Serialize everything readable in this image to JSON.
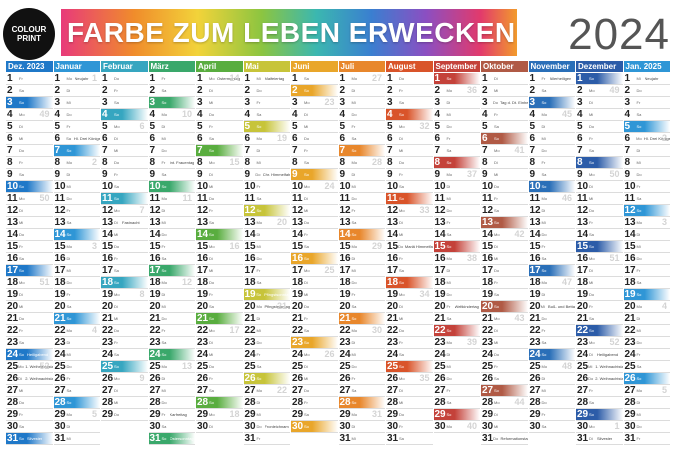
{
  "logo": {
    "line1": "COLOUR",
    "line2": "PRINT"
  },
  "header": {
    "title": "FARBE ZUM LEBEN ERWECKEN",
    "year": "2024"
  },
  "months": [
    {
      "name": "Dez. 2023",
      "days": 31,
      "start": 4,
      "color": "#1f78c8",
      "events": {
        "24": "Heiligabend",
        "25": "1. Weihnachtstag",
        "26": "2. Weihnachtstag",
        "31": "Silvester"
      },
      "weeks": {
        "4": "49",
        "11": "50",
        "18": "51",
        "25": "52"
      }
    },
    {
      "name": "Januar",
      "days": 31,
      "start": 0,
      "color": "#2f96d6",
      "events": {
        "1": "Neujahr",
        "6": "Hl. Drei Könige"
      },
      "weeks": {
        "1": "1",
        "8": "2",
        "15": "3",
        "22": "4",
        "29": "5"
      }
    },
    {
      "name": "Februar",
      "days": 29,
      "start": 3,
      "color": "#36a6c0",
      "events": {
        "13": "Fastnacht"
      },
      "weeks": {
        "5": "6",
        "12": "7",
        "19": "8",
        "26": "9"
      }
    },
    {
      "name": "März",
      "days": 31,
      "start": 4,
      "color": "#3aa86b",
      "events": {
        "8": "Int. Frauentag",
        "29": "Karfreitag",
        "31": "Ostersonntag"
      },
      "weeks": {
        "4": "10",
        "11": "11",
        "18": "12",
        "25": "13"
      }
    },
    {
      "name": "April",
      "days": 30,
      "start": 0,
      "color": "#59ad3f",
      "events": {
        "1": "Ostermontag"
      },
      "weeks": {
        "1": "14",
        "8": "15",
        "15": "16",
        "22": "17",
        "29": "18"
      }
    },
    {
      "name": "Mai",
      "days": 31,
      "start": 2,
      "color": "#c7c43a",
      "events": {
        "1": "Maifeiertag",
        "9": "Chr. Himmelfahrt",
        "19": "Pfingstsonntag",
        "20": "Pfingstmontag",
        "30": "Fronleichnam"
      },
      "weeks": {
        "6": "19",
        "13": "20",
        "20": "21",
        "27": "22"
      }
    },
    {
      "name": "Juni",
      "days": 30,
      "start": 5,
      "color": "#e9a62a",
      "events": {},
      "weeks": {
        "3": "23",
        "10": "24",
        "17": "25",
        "24": "26"
      }
    },
    {
      "name": "Juli",
      "days": 31,
      "start": 0,
      "color": "#e8872c",
      "events": {},
      "weeks": {
        "1": "27",
        "8": "28",
        "15": "29",
        "22": "30",
        "29": "31"
      }
    },
    {
      "name": "August",
      "days": 31,
      "start": 3,
      "color": "#d9542a",
      "events": {
        "15": "Mariä Himmelfahrt"
      },
      "weeks": {
        "5": "32",
        "12": "33",
        "19": "34",
        "26": "35"
      }
    },
    {
      "name": "September",
      "days": 30,
      "start": 6,
      "color": "#c4423a",
      "events": {
        "20": "Weltkindertag"
      },
      "weeks": {
        "2": "36",
        "9": "37",
        "16": "38",
        "23": "39",
        "30": "40"
      }
    },
    {
      "name": "Oktober",
      "days": 31,
      "start": 1,
      "color": "#b05a45",
      "events": {
        "3": "Tag d. Dt. Einheit",
        "31": "Reformationstag"
      },
      "weeks": {
        "7": "41",
        "14": "42",
        "21": "43",
        "28": "44"
      }
    },
    {
      "name": "November",
      "days": 30,
      "start": 4,
      "color": "#2a6fb8",
      "events": {
        "1": "Allerheiligen",
        "20": "Buß- und Bettag"
      },
      "weeks": {
        "4": "45",
        "11": "46",
        "18": "47",
        "25": "48"
      }
    },
    {
      "name": "Dezember",
      "days": 31,
      "start": 6,
      "color": "#2c5ca8",
      "events": {
        "24": "Heiligabend",
        "25": "1. Weihnachtstag",
        "26": "2. Weihnachtstag",
        "31": "Silvester"
      },
      "weeks": {
        "2": "49",
        "9": "50",
        "16": "51",
        "23": "52",
        "30": "1"
      }
    },
    {
      "name": "Jan. 2025",
      "days": 31,
      "start": 2,
      "color": "#2f96d6",
      "events": {
        "1": "Neujahr",
        "6": "Hl. Drei Könige"
      },
      "weeks": {
        "6": "2",
        "13": "3",
        "20": "4",
        "27": "5"
      }
    }
  ],
  "weekday_abbr": [
    "Mo",
    "Di",
    "Mi",
    "Do",
    "Fr",
    "Sa",
    "So"
  ]
}
